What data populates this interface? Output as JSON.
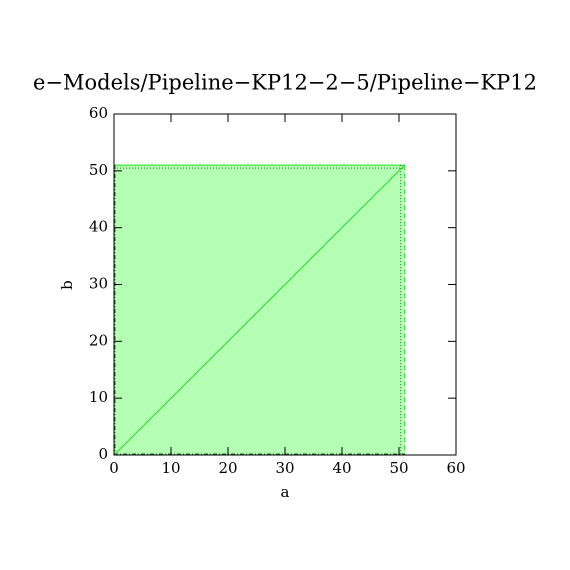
{
  "chart_data": {
    "type": "area",
    "title": "e−Models/Pipeline−KP12−2−5/Pipeline−KP12",
    "x_label": "a",
    "y_label": "b",
    "x": [
      0,
      51
    ],
    "series": [
      {
        "name": "b",
        "color": "#22dd22",
        "fill": "#b3ffb3",
        "values": [
          0,
          51
        ]
      }
    ],
    "xlim": [
      0,
      60
    ],
    "xticks": [
      0,
      10,
      20,
      30,
      40,
      50,
      60
    ],
    "ylim": [
      0,
      60
    ],
    "yticks": [
      0,
      10,
      20,
      30,
      40,
      50,
      60
    ]
  }
}
